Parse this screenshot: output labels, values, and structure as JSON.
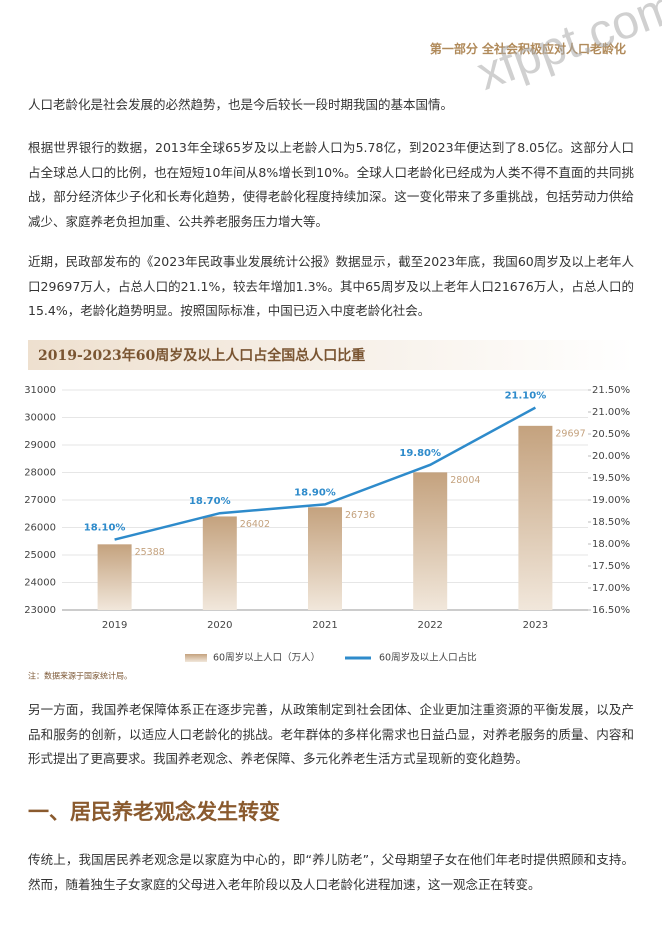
{
  "header": {
    "section": "第一部分 全社会积极应对人口老龄化"
  },
  "watermark": "xfppt.com",
  "paragraphs": [
    "人口老龄化是社会发展的必然趋势，也是今后较长一段时期我国的基本国情。",
    "根据世界银行的数据，2013年全球65岁及以上老龄人口为5.78亿，到2023年便达到了8.05亿。这部分人口占全球总人口的比例，也在短短10年间从8%增长到10%。全球人口老龄化已经成为人类不得不直面的共同挑战，部分经济体少子化和长寿化趋势，使得老龄化程度持续加深。这一变化带来了多重挑战，包括劳动力供给减少、家庭养老负担加重、公共养老服务压力增大等。",
    "近期，民政部发布的《2023年民政事业发展统计公报》数据显示，截至2023年底，我国60周岁及以上老年人口29697万人，占总人口的21.1%，较去年增加1.3%。其中65周岁及以上老年人口21676万人，占总人口的15.4%，老龄化趋势明显。按照国际标准，中国已迈入中度老龄化社会。",
    "另一方面，我国养老保障体系正在逐步完善，从政策制定到社会团体、企业更加注重资源的平衡发展，以及产品和服务的创新，以适应人口老龄化的挑战。老年群体的多样化需求也日益凸显，对养老服务的质量、内容和形式提出了更高要求。我国养老观念、养老保障、多元化养老生活方式呈现新的变化趋势。"
  ],
  "chart_data": {
    "type": "bar_line",
    "title": "2019-2023年60周岁及以上人口占全国总人口比重",
    "categories": [
      "2019",
      "2020",
      "2021",
      "2022",
      "2023"
    ],
    "series": [
      {
        "name": "60周岁以上人口（万人）",
        "type": "bar",
        "color": "#c4a27e",
        "values": [
          25388,
          26402,
          26736,
          28004,
          29697
        ]
      },
      {
        "name": "60周岁及以上人口占比",
        "type": "line",
        "axis": "y2",
        "color": "#2e8bcb",
        "values": [
          18.1,
          18.7,
          18.9,
          19.8,
          21.1
        ],
        "value_labels": [
          "18.10%",
          "18.70%",
          "18.90%",
          "19.80%",
          "21.10%"
        ]
      }
    ],
    "ylim": [
      23000,
      31000
    ],
    "yticks": [
      23000,
      24000,
      25000,
      26000,
      27000,
      28000,
      29000,
      30000,
      31000
    ],
    "y2lim": [
      16.5,
      21.5
    ],
    "y2ticks": [
      {
        "value": 16.5,
        "label": "16.50%"
      },
      {
        "value": 17,
        "label": "17.00%"
      },
      {
        "value": 17.5,
        "label": "17.50%"
      },
      {
        "value": 18,
        "label": "18.00%"
      },
      {
        "value": 18.5,
        "label": "18.50%"
      },
      {
        "value": 19,
        "label": "19.00%"
      },
      {
        "value": 19.5,
        "label": "19.50%"
      },
      {
        "value": 20,
        "label": "20.00%"
      },
      {
        "value": 20.5,
        "label": "20.50%"
      },
      {
        "value": 21,
        "label": "21.00%"
      },
      {
        "value": 21.5,
        "label": "21.50%"
      }
    ],
    "note": "注：数据来源于国家统计局。"
  },
  "heading": "一、居民养老观念发生转变",
  "paragraphs_after": [
    "传统上，我国居民养老观念是以家庭为中心的，即“养儿防老”，父母期望子女在他们年老时提供照顾和支持。然而，随着独生子女家庭的父母进入老年阶段以及人口老龄化进程加速，这一观念正在转变。"
  ]
}
